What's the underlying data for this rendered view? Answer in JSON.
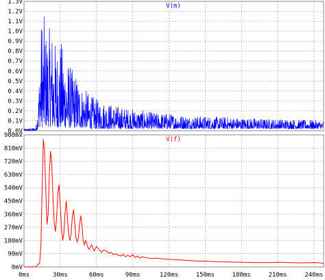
{
  "chart_data": [
    {
      "type": "line",
      "title": "V(m)",
      "color": "#0000ff",
      "x_unit": "ms",
      "xlim": [
        0,
        248
      ],
      "ylim": [
        0,
        1.3
      ],
      "grid": true,
      "y_ticks": [
        "0.0V",
        "0.1V",
        "0.2V",
        "0.3V",
        "0.4V",
        "0.5V",
        "0.6V",
        "0.7V",
        "0.8V",
        "0.9V",
        "1.0V",
        "1.1V",
        "1.2V",
        "1.3V"
      ],
      "y_tick_values": [
        0,
        0.1,
        0.2,
        0.3,
        0.4,
        0.5,
        0.6,
        0.7,
        0.8,
        0.9,
        1.0,
        1.1,
        1.2,
        1.3
      ],
      "x_tick_values": [
        0,
        30,
        60,
        90,
        120,
        150,
        180,
        210,
        240
      ],
      "series": [
        {
          "values_envelope": {
            "x": [
              0,
              8,
              10,
              12,
              14,
              15,
              16,
              17,
              18,
              19,
              20,
              22,
              24,
              26,
              28,
              30,
              33,
              36,
              40,
              44,
              48,
              52,
              56,
              60,
              65,
              70,
              75,
              80,
              90,
              100,
              110,
              120,
              130,
              140,
              150,
              160,
              170,
              180,
              190,
              200,
              210,
              220,
              230,
              240,
              248
            ],
            "peak": [
              0.02,
              0.03,
              0.05,
              0.4,
              1.05,
              1.22,
              0.95,
              1.27,
              1.0,
              1.08,
              0.9,
              1.15,
              0.95,
              0.9,
              0.85,
              0.95,
              0.8,
              0.72,
              0.62,
              0.55,
              0.45,
              0.4,
              0.35,
              0.32,
              0.3,
              0.28,
              0.26,
              0.24,
              0.22,
              0.2,
              0.18,
              0.18,
              0.16,
              0.15,
              0.15,
              0.14,
              0.14,
              0.13,
              0.13,
              0.12,
              0.12,
              0.12,
              0.11,
              0.11,
              0.1
            ],
            "floor": [
              0.0,
              0.0,
              0.0,
              0.02,
              0.05,
              0.03,
              0.04,
              0.03,
              0.05,
              0.04,
              0.04,
              0.04,
              0.03,
              0.03,
              0.03,
              0.03,
              0.03,
              0.03,
              0.03,
              0.03,
              0.03,
              0.03,
              0.02,
              0.02,
              0.02,
              0.02,
              0.02,
              0.02,
              0.02,
              0.02,
              0.02,
              0.02,
              0.02,
              0.02,
              0.02,
              0.02,
              0.02,
              0.02,
              0.02,
              0.02,
              0.02,
              0.02,
              0.02,
              0.02,
              0.02
            ]
          }
        }
      ]
    },
    {
      "type": "line",
      "title": "V(f)",
      "color": "#ff0000",
      "x_unit": "ms",
      "xlim": [
        0,
        248
      ],
      "ylim": [
        0,
        900
      ],
      "grid": true,
      "y_ticks": [
        "0mV",
        "90mV",
        "180mV",
        "270mV",
        "360mV",
        "450mV",
        "540mV",
        "630mV",
        "720mV",
        "810mV",
        "900mV"
      ],
      "y_tick_values": [
        0,
        90,
        180,
        270,
        360,
        450,
        540,
        630,
        720,
        810,
        900
      ],
      "x_ticks": [
        "0ms",
        "30ms",
        "60ms",
        "90ms",
        "120ms",
        "150ms",
        "180ms",
        "210ms",
        "240ms"
      ],
      "x_tick_values": [
        0,
        30,
        60,
        90,
        120,
        150,
        180,
        210,
        240
      ],
      "series": [
        {
          "x": [
            0,
            10,
            13,
            14,
            15,
            16,
            17,
            18,
            19,
            20,
            21,
            22,
            23,
            24,
            25,
            26,
            27,
            28,
            29,
            30,
            31,
            32,
            33,
            34,
            35,
            36,
            37,
            38,
            39,
            40,
            41,
            42,
            43,
            44,
            45,
            46,
            47,
            48,
            49,
            50,
            51,
            52,
            53,
            54,
            55,
            56,
            57,
            58,
            59,
            60,
            62,
            64,
            66,
            68,
            70,
            72,
            74,
            76,
            78,
            80,
            82,
            84,
            86,
            88,
            90,
            92,
            94,
            96,
            98,
            100,
            105,
            110,
            115,
            120,
            125,
            130,
            135,
            140,
            145,
            150,
            155,
            160,
            170,
            180,
            190,
            200,
            205,
            210,
            220,
            230,
            240,
            245,
            248
          ],
          "values": [
            0,
            2,
            30,
            150,
            520,
            870,
            800,
            530,
            290,
            360,
            640,
            790,
            700,
            470,
            300,
            240,
            340,
            500,
            560,
            420,
            270,
            180,
            230,
            370,
            450,
            330,
            220,
            180,
            230,
            340,
            390,
            300,
            200,
            170,
            200,
            290,
            350,
            280,
            180,
            150,
            180,
            160,
            130,
            120,
            140,
            150,
            130,
            110,
            125,
            140,
            120,
            100,
            115,
            110,
            95,
            100,
            85,
            90,
            80,
            75,
            85,
            70,
            80,
            70,
            85,
            65,
            75,
            60,
            70,
            65,
            58,
            60,
            55,
            52,
            50,
            48,
            45,
            42,
            40,
            40,
            38,
            36,
            34,
            32,
            30,
            30,
            30,
            32,
            30,
            28,
            30,
            28,
            25
          ]
        }
      ]
    }
  ]
}
